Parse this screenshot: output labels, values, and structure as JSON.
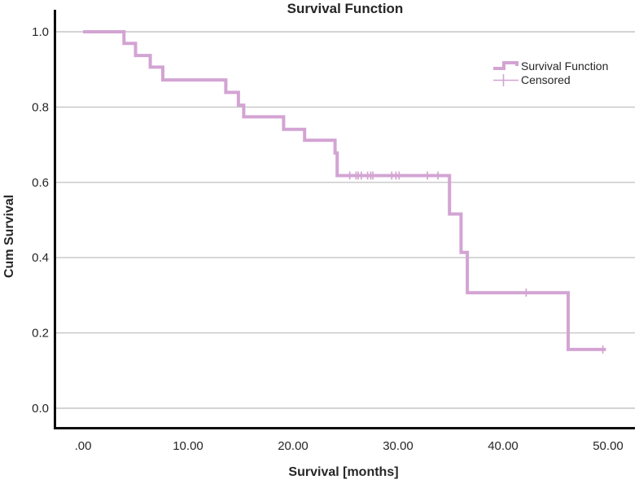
{
  "title": "Survival Function",
  "axes": {
    "xlabel": "Survival [months]",
    "ylabel": "Cum Survival"
  },
  "legend": {
    "items": [
      {
        "label": "Survival Function",
        "symbol": "step-line-icon"
      },
      {
        "label": "Censored",
        "symbol": "plus-icon"
      }
    ]
  },
  "chart_data": {
    "type": "line",
    "subtype": "kaplan-meier-step",
    "title": "Survival Function",
    "xlabel": "Survival [months]",
    "ylabel": "Cum Survival",
    "xlim": [
      0,
      50
    ],
    "ylim": [
      0.0,
      1.0
    ],
    "x_ticks": {
      "values": [
        0,
        10,
        20,
        30,
        40,
        50
      ],
      "labels": [
        ".00",
        "10.00",
        "20.00",
        "30.00",
        "40.00",
        "50.00"
      ]
    },
    "y_ticks": {
      "values": [
        0.0,
        0.2,
        0.4,
        0.6,
        0.8,
        1.0
      ],
      "labels": [
        "0.0",
        "0.2",
        "0.4",
        "0.6",
        "0.8",
        "1.0"
      ]
    },
    "grid": "horizontal-only",
    "legend_position": "top-right-inside",
    "series": [
      {
        "name": "Survival Function",
        "step_mode": "post",
        "points": [
          [
            0.0,
            1.0
          ],
          [
            3.9,
            0.969
          ],
          [
            5.0,
            0.937
          ],
          [
            6.4,
            0.906
          ],
          [
            7.6,
            0.872
          ],
          [
            13.6,
            0.839
          ],
          [
            14.8,
            0.805
          ],
          [
            15.3,
            0.774
          ],
          [
            19.1,
            0.741
          ],
          [
            21.1,
            0.712
          ],
          [
            24.0,
            0.678
          ],
          [
            24.2,
            0.618
          ],
          [
            34.9,
            0.516
          ],
          [
            36.0,
            0.414
          ],
          [
            36.6,
            0.307
          ],
          [
            46.2,
            0.156
          ]
        ],
        "end_x": 49.8
      }
    ],
    "censored_marks": {
      "name": "Censored",
      "points": [
        [
          25.4,
          0.618
        ],
        [
          26.0,
          0.618
        ],
        [
          26.2,
          0.618
        ],
        [
          26.5,
          0.618
        ],
        [
          27.1,
          0.618
        ],
        [
          27.4,
          0.618
        ],
        [
          27.6,
          0.618
        ],
        [
          29.4,
          0.618
        ],
        [
          29.8,
          0.618
        ],
        [
          30.1,
          0.618
        ],
        [
          32.8,
          0.618
        ],
        [
          33.8,
          0.618
        ],
        [
          42.2,
          0.307
        ],
        [
          49.5,
          0.156
        ]
      ]
    },
    "colors": {
      "line": "#d3a4d3",
      "grid": "#c6c6c6",
      "axis": "#0d0d0d",
      "text": "#262626"
    }
  }
}
